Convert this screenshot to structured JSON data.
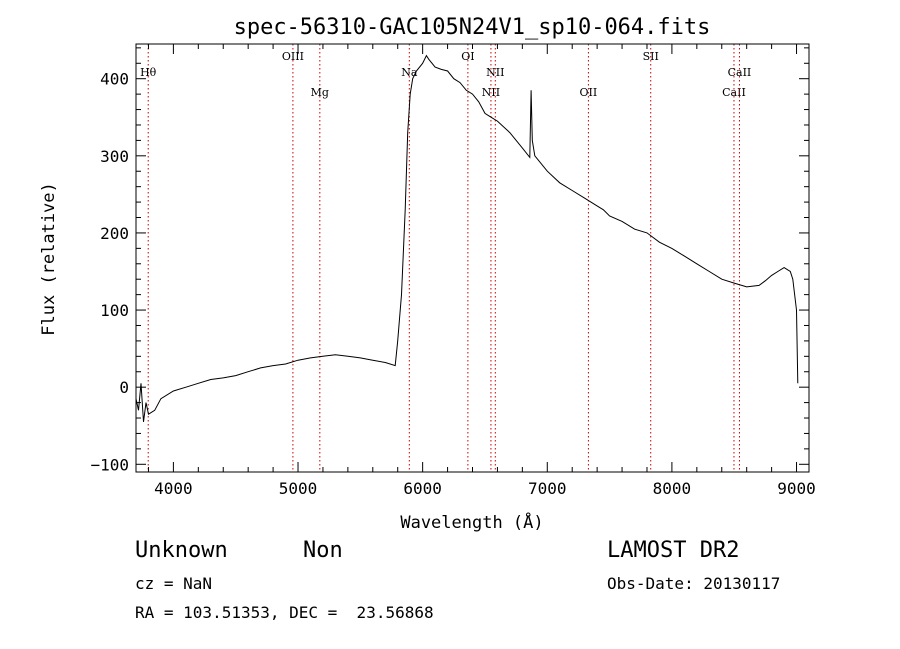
{
  "chart_data": {
    "type": "line",
    "title": "spec-56310-GAC105N24V1_sp10-064.fits",
    "xlabel": "Wavelength (Å)",
    "ylabel": "Flux (relative)",
    "xlim": [
      3700,
      9100
    ],
    "ylim": [
      -110,
      445
    ],
    "x_ticks": [
      4000,
      5000,
      6000,
      7000,
      8000,
      9000
    ],
    "y_ticks": [
      -100,
      0,
      100,
      200,
      300,
      400
    ],
    "grid": false,
    "line_color": "#000000",
    "marker_color": "#cc0000",
    "spectrum": {
      "x": [
        3700,
        3720,
        3740,
        3760,
        3780,
        3800,
        3850,
        3900,
        4000,
        4100,
        4200,
        4300,
        4400,
        4500,
        4600,
        4700,
        4800,
        4900,
        5000,
        5100,
        5200,
        5300,
        5400,
        5500,
        5600,
        5700,
        5780,
        5800,
        5830,
        5860,
        5880,
        5900,
        5920,
        5950,
        6000,
        6030,
        6050,
        6100,
        6150,
        6200,
        6250,
        6300,
        6350,
        6400,
        6450,
        6500,
        6550,
        6600,
        6700,
        6800,
        6860,
        6870,
        6880,
        6900,
        7000,
        7100,
        7200,
        7300,
        7400,
        7450,
        7500,
        7600,
        7700,
        7800,
        7900,
        8000,
        8100,
        8200,
        8300,
        8400,
        8500,
        8600,
        8700,
        8750,
        8800,
        8850,
        8900,
        8950,
        8970,
        9000,
        9010
      ],
      "y": [
        -15,
        -30,
        5,
        -45,
        -20,
        -35,
        -30,
        -15,
        -5,
        0,
        5,
        10,
        12,
        15,
        20,
        25,
        28,
        30,
        35,
        38,
        40,
        42,
        40,
        38,
        35,
        32,
        28,
        60,
        120,
        230,
        330,
        380,
        400,
        410,
        420,
        430,
        425,
        415,
        412,
        410,
        400,
        395,
        385,
        380,
        370,
        355,
        350,
        345,
        330,
        310,
        298,
        385,
        320,
        300,
        280,
        265,
        255,
        245,
        235,
        230,
        222,
        215,
        205,
        200,
        188,
        180,
        170,
        160,
        150,
        140,
        135,
        130,
        132,
        138,
        145,
        150,
        155,
        150,
        140,
        100,
        5
      ]
    },
    "lines": [
      {
        "label": "Hθ",
        "x": 3798,
        "row": 1
      },
      {
        "label": "OIII",
        "x": 4959,
        "row": 0
      },
      {
        "label": "Mg",
        "x": 5175,
        "row": 2
      },
      {
        "label": "Na",
        "x": 5893,
        "row": 1
      },
      {
        "label": "OI",
        "x": 6363,
        "row": 0
      },
      {
        "label": "NII",
        "x": 6548,
        "row": 2
      },
      {
        "label": "NII",
        "x": 6583,
        "row": 1
      },
      {
        "label": "OII",
        "x": 7330,
        "row": 2
      },
      {
        "label": "SII",
        "x": 7830,
        "row": 0
      },
      {
        "label": "CaII",
        "x": 8498,
        "row": 2
      },
      {
        "label": "CaII",
        "x": 8542,
        "row": 1
      }
    ]
  },
  "info": {
    "class": "Unknown",
    "subclass": "Non",
    "survey": "LAMOST DR2",
    "cz": "cz = NaN",
    "obs_date": "Obs-Date: 20130117",
    "coords": "RA = 103.51353, DEC =  23.56868"
  }
}
